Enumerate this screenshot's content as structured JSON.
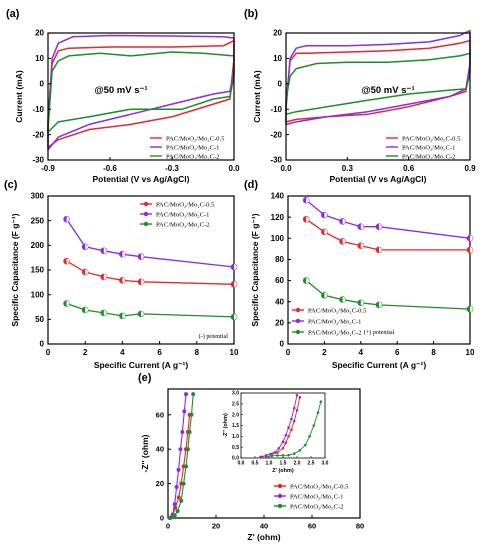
{
  "chart_data": [
    {
      "id": "a",
      "type": "line",
      "panel_label": "(a)",
      "xlabel": "Potential (V vs Ag/AgCl)",
      "ylabel": "Current (mA)",
      "annotation": "@50 mV s⁻¹",
      "xlim": [
        -0.9,
        0.0
      ],
      "ylim": [
        -30,
        20
      ],
      "xticks": [
        "-0.9",
        "-0.6",
        "-0.3",
        "0.0"
      ],
      "yticks": [
        "-30",
        "-20",
        "-10",
        "0",
        "10",
        "20"
      ],
      "legend_position": "bottom-right",
      "series": [
        {
          "name": "PAC/MoO₂/Mo₂C-0.5",
          "color": "#e8262d",
          "upper": [
            [
              -0.9,
              -14
            ],
            [
              -0.88,
              8
            ],
            [
              -0.85,
              13
            ],
            [
              -0.8,
              14
            ],
            [
              -0.6,
              14.5
            ],
            [
              -0.3,
              14.5
            ],
            [
              -0.05,
              15
            ],
            [
              0.0,
              17
            ],
            [
              0.0,
              10
            ]
          ],
          "lower": [
            [
              0.0,
              10
            ],
            [
              -0.02,
              -6
            ],
            [
              -0.1,
              -8
            ],
            [
              -0.3,
              -13
            ],
            [
              -0.5,
              -16
            ],
            [
              -0.7,
              -18
            ],
            [
              -0.85,
              -22
            ],
            [
              -0.9,
              -25
            ]
          ]
        },
        {
          "name": "PAC/MoO₂/Mo₂C-1",
          "color": "#8b2be2",
          "upper": [
            [
              -0.9,
              -16
            ],
            [
              -0.88,
              10
            ],
            [
              -0.85,
              16
            ],
            [
              -0.78,
              18.5
            ],
            [
              -0.6,
              19
            ],
            [
              -0.3,
              18.8
            ],
            [
              -0.05,
              18.5
            ],
            [
              0.0,
              18
            ],
            [
              0.0,
              5
            ]
          ],
          "lower": [
            [
              0.0,
              5
            ],
            [
              -0.02,
              -3
            ],
            [
              -0.1,
              -4
            ],
            [
              -0.3,
              -8
            ],
            [
              -0.5,
              -12
            ],
            [
              -0.7,
              -16
            ],
            [
              -0.85,
              -21
            ],
            [
              -0.9,
              -26
            ]
          ]
        },
        {
          "name": "PAC/MoO₂/Mo₂C-2",
          "color": "#1e8c2a",
          "upper": [
            [
              -0.9,
              -18
            ],
            [
              -0.88,
              5
            ],
            [
              -0.85,
              9
            ],
            [
              -0.8,
              11
            ],
            [
              -0.65,
              12
            ],
            [
              -0.5,
              11
            ],
            [
              -0.3,
              12.5
            ],
            [
              -0.15,
              12
            ],
            [
              0.0,
              11
            ],
            [
              0.0,
              3
            ]
          ],
          "lower": [
            [
              0.0,
              3
            ],
            [
              -0.02,
              -5
            ],
            [
              -0.1,
              -6
            ],
            [
              -0.25,
              -10
            ],
            [
              -0.5,
              -10
            ],
            [
              -0.7,
              -13
            ],
            [
              -0.85,
              -15
            ],
            [
              -0.9,
              -19
            ]
          ]
        }
      ]
    },
    {
      "id": "b",
      "type": "line",
      "panel_label": "(b)",
      "xlabel": "Potential (V vs Ag/AgCl)",
      "ylabel": "Current (mA)",
      "annotation": "@50 mV s⁻¹",
      "xlim": [
        0.0,
        0.9
      ],
      "ylim": [
        -30,
        20
      ],
      "xticks": [
        "0.0",
        "0.3",
        "0.6",
        "0.9"
      ],
      "yticks": [
        "-30",
        "-20",
        "-10",
        "0",
        "10",
        "20"
      ],
      "legend_position": "bottom-right",
      "series": [
        {
          "name": "PAC/MoO₂/Mo₂C-0.5",
          "color": "#e8262d",
          "upper": [
            [
              0.0,
              -8
            ],
            [
              0.02,
              9
            ],
            [
              0.05,
              12
            ],
            [
              0.1,
              12
            ],
            [
              0.3,
              12.5
            ],
            [
              0.5,
              13
            ],
            [
              0.7,
              14
            ],
            [
              0.85,
              16
            ],
            [
              0.9,
              17
            ],
            [
              0.9,
              7
            ]
          ],
          "lower": [
            [
              0.9,
              7
            ],
            [
              0.88,
              -3
            ],
            [
              0.8,
              -5
            ],
            [
              0.6,
              -9
            ],
            [
              0.4,
              -12
            ],
            [
              0.2,
              -13
            ],
            [
              0.05,
              -14
            ],
            [
              0.0,
              -15
            ]
          ]
        },
        {
          "name": "PAC/MoO₂/Mo₂C-1",
          "color": "#8b2be2",
          "upper": [
            [
              0.0,
              -10
            ],
            [
              0.02,
              10
            ],
            [
              0.05,
              14
            ],
            [
              0.1,
              15
            ],
            [
              0.3,
              15
            ],
            [
              0.5,
              15.5
            ],
            [
              0.7,
              16.5
            ],
            [
              0.85,
              19
            ],
            [
              0.9,
              21
            ],
            [
              0.9,
              8
            ]
          ],
          "lower": [
            [
              0.9,
              8
            ],
            [
              0.88,
              -2
            ],
            [
              0.8,
              -5
            ],
            [
              0.6,
              -8
            ],
            [
              0.4,
              -11
            ],
            [
              0.2,
              -13
            ],
            [
              0.05,
              -15
            ],
            [
              0.0,
              -16
            ]
          ]
        },
        {
          "name": "PAC/MoO₂/Mo₂C-2",
          "color": "#1e8c2a",
          "upper": [
            [
              0.0,
              -6
            ],
            [
              0.02,
              3
            ],
            [
              0.05,
              6
            ],
            [
              0.15,
              8
            ],
            [
              0.3,
              8.5
            ],
            [
              0.5,
              8.5
            ],
            [
              0.7,
              9.5
            ],
            [
              0.85,
              11
            ],
            [
              0.9,
              12
            ],
            [
              0.9,
              4
            ]
          ],
          "lower": [
            [
              0.9,
              4
            ],
            [
              0.88,
              -2
            ],
            [
              0.8,
              -2.5
            ],
            [
              0.6,
              -4
            ],
            [
              0.4,
              -6.5
            ],
            [
              0.2,
              -9
            ],
            [
              0.05,
              -11
            ],
            [
              0.0,
              -12
            ]
          ]
        }
      ]
    },
    {
      "id": "c",
      "type": "line",
      "panel_label": "(c)",
      "xlabel": "Specific Current (A g⁻¹)",
      "ylabel": "Specific Capacitance (F g⁻¹)",
      "annotation": "(-) potential",
      "xlim": [
        0,
        10
      ],
      "ylim": [
        0,
        300
      ],
      "xticks": [
        "0",
        "2",
        "4",
        "6",
        "8",
        "10"
      ],
      "yticks": [
        "0",
        "50",
        "100",
        "150",
        "200",
        "250",
        "300"
      ],
      "legend_position": "top-right",
      "x": [
        1,
        2,
        3,
        4,
        5,
        10
      ],
      "series": [
        {
          "name": "PAC/MoO₂/Mo₂C-0.5",
          "color": "#e8262d",
          "values": [
            168,
            146,
            136,
            129,
            126,
            121
          ]
        },
        {
          "name": "PAC/MoO₂/Mo₂C-1",
          "color": "#8b2be2",
          "values": [
            253,
            197,
            189,
            182,
            177,
            156
          ]
        },
        {
          "name": "PAC/MoO₂/Mo₂C-2",
          "color": "#1e8c2a",
          "values": [
            82,
            69,
            63,
            57,
            61,
            55
          ]
        }
      ]
    },
    {
      "id": "d",
      "type": "line",
      "panel_label": "(d)",
      "xlabel": "Specific Current (A g⁻¹)",
      "ylabel": "Specific Capacitance (F g⁻¹)",
      "annotation": "(+) potential",
      "xlim": [
        0,
        10
      ],
      "ylim": [
        0,
        140
      ],
      "xticks": [
        "0",
        "2",
        "4",
        "6",
        "8",
        "10"
      ],
      "yticks": [
        "0",
        "20",
        "40",
        "60",
        "80",
        "100",
        "120",
        "140"
      ],
      "legend_position": "bottom-left",
      "x": [
        1,
        2,
        3,
        4,
        5,
        10
      ],
      "series": [
        {
          "name": "PAC/MoO₂/Mo₂C-0.5",
          "color": "#e8262d",
          "values": [
            118,
            106,
            97,
            93,
            89,
            89
          ]
        },
        {
          "name": "PAC/MoO₂/Mo₂C-1",
          "color": "#8b2be2",
          "values": [
            136,
            122,
            116,
            111,
            111,
            100
          ]
        },
        {
          "name": "PAC/MoO₂/Mo₂C-2",
          "color": "#1e8c2a",
          "values": [
            60,
            46,
            42,
            39,
            37,
            33
          ]
        }
      ]
    },
    {
      "id": "e",
      "type": "scatter",
      "panel_label": "(e)",
      "xlabel": "Z' (ohm)",
      "ylabel": "-Z'' (ohm)",
      "xlim": [
        0,
        80
      ],
      "ylim": [
        0,
        75
      ],
      "xticks": [
        "0",
        "20",
        "40",
        "60",
        "80"
      ],
      "yticks": [
        "0",
        "20",
        "40",
        "60"
      ],
      "legend_position": "bottom-right",
      "series": [
        {
          "name": "PAC/MoO₂/Mo₂C-0.5",
          "color": "#e8262d",
          "points": [
            [
              0.7,
              0.1
            ],
            [
              1.5,
              0.4
            ],
            [
              2.0,
              2
            ],
            [
              3.0,
              6
            ],
            [
              4.5,
              12
            ],
            [
              5.5,
              20
            ],
            [
              6.5,
              30
            ],
            [
              7.5,
              40
            ],
            [
              8.3,
              50
            ],
            [
              9.0,
              60
            ]
          ]
        },
        {
          "name": "PAC/MoO₂/Mo₂C-1",
          "color": "#8b2be2",
          "points": [
            [
              0.7,
              0.1
            ],
            [
              1.5,
              0.4
            ],
            [
              2.0,
              2
            ],
            [
              2.8,
              8
            ],
            [
              3.6,
              18
            ],
            [
              4.4,
              28
            ],
            [
              5.2,
              40
            ],
            [
              6.0,
              50
            ],
            [
              6.8,
              62
            ],
            [
              7.5,
              72
            ]
          ]
        },
        {
          "name": "PAC/MoO₂/Mo₂C-2",
          "color": "#1e8c2a",
          "points": [
            [
              1.0,
              0.1
            ],
            [
              2.0,
              0.5
            ],
            [
              2.8,
              1.5
            ],
            [
              4.0,
              4
            ],
            [
              5.5,
              10
            ],
            [
              6.5,
              20
            ],
            [
              7.5,
              30
            ],
            [
              8.3,
              40
            ],
            [
              9.0,
              50
            ],
            [
              9.8,
              60
            ],
            [
              10.5,
              72
            ]
          ]
        }
      ],
      "inset": {
        "xlabel": "Z' (ohm)",
        "ylabel": "-Z'' (ohm)",
        "xlim": [
          0.0,
          3.0
        ],
        "ylim": [
          0.0,
          3.0
        ],
        "xticks": [
          "0.0",
          "0.5",
          "1.0",
          "1.5",
          "2.0",
          "2.5",
          "3.0"
        ],
        "yticks": [
          "0.0",
          "0.5",
          "1.0",
          "1.5",
          "2.0",
          "2.5",
          "3.0"
        ],
        "series": [
          {
            "name": "PAC/MoO₂/Mo₂C-0.5",
            "color": "#e8262d",
            "points": [
              [
                0.75,
                0.05
              ],
              [
                0.9,
                0.12
              ],
              [
                1.1,
                0.18
              ],
              [
                1.3,
                0.25
              ],
              [
                1.5,
                0.45
              ],
              [
                1.6,
                0.7
              ],
              [
                1.7,
                1.0
              ],
              [
                1.8,
                1.3
              ],
              [
                1.9,
                1.7
              ],
              [
                2.0,
                2.2
              ],
              [
                2.1,
                2.8
              ]
            ]
          },
          {
            "name": "PAC/MoO₂/Mo₂C-1",
            "color": "#8b2be2",
            "points": [
              [
                0.7,
                0.05
              ],
              [
                0.9,
                0.12
              ],
              [
                1.05,
                0.18
              ],
              [
                1.2,
                0.25
              ],
              [
                1.35,
                0.45
              ],
              [
                1.5,
                0.75
              ],
              [
                1.6,
                1.05
              ],
              [
                1.7,
                1.4
              ],
              [
                1.8,
                1.8
              ],
              [
                1.9,
                2.3
              ],
              [
                2.0,
                2.9
              ]
            ]
          },
          {
            "name": "PAC/MoO₂/Mo₂C-2",
            "color": "#1e8c2a",
            "points": [
              [
                0.9,
                0.05
              ],
              [
                1.1,
                0.1
              ],
              [
                1.3,
                0.12
              ],
              [
                1.5,
                0.12
              ],
              [
                1.7,
                0.13
              ],
              [
                1.9,
                0.2
              ],
              [
                2.1,
                0.35
              ],
              [
                2.3,
                0.6
              ],
              [
                2.45,
                1.0
              ],
              [
                2.6,
                1.5
              ],
              [
                2.75,
                2.1
              ],
              [
                2.85,
                2.6
              ]
            ]
          }
        ]
      }
    }
  ]
}
